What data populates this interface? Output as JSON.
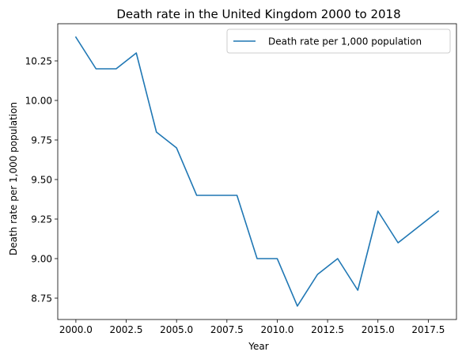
{
  "chart_data": {
    "type": "line",
    "title": "Death rate in the United Kingdom 2000 to 2018",
    "xlabel": "Year",
    "ylabel": "Death rate per 1,000 population",
    "xlim": [
      1999.1,
      2018.9
    ],
    "ylim": [
      8.615,
      10.485
    ],
    "xticks": [
      2000.0,
      2002.5,
      2005.0,
      2007.5,
      2010.0,
      2012.5,
      2015.0,
      2017.5
    ],
    "xtick_labels": [
      "2000.0",
      "2002.5",
      "2005.0",
      "2007.5",
      "2010.0",
      "2012.5",
      "2015.0",
      "2017.5"
    ],
    "yticks": [
      8.75,
      9.0,
      9.25,
      9.5,
      9.75,
      10.0,
      10.25
    ],
    "ytick_labels": [
      "8.75",
      "9.00",
      "9.25",
      "9.50",
      "9.75",
      "10.00",
      "10.25"
    ],
    "grid": false,
    "legend_position": "upper-right",
    "series": [
      {
        "name": "Death rate per 1,000 population",
        "color": "#1f77b4",
        "x": [
          2000,
          2001,
          2002,
          2003,
          2004,
          2005,
          2006,
          2007,
          2008,
          2009,
          2010,
          2011,
          2012,
          2013,
          2014,
          2015,
          2016,
          2017,
          2018
        ],
        "y": [
          10.4,
          10.2,
          10.2,
          10.3,
          9.8,
          9.7,
          9.4,
          9.4,
          9.4,
          9.0,
          9.0,
          8.7,
          8.9,
          9.0,
          8.8,
          9.3,
          9.1,
          9.2,
          9.3
        ]
      }
    ]
  }
}
